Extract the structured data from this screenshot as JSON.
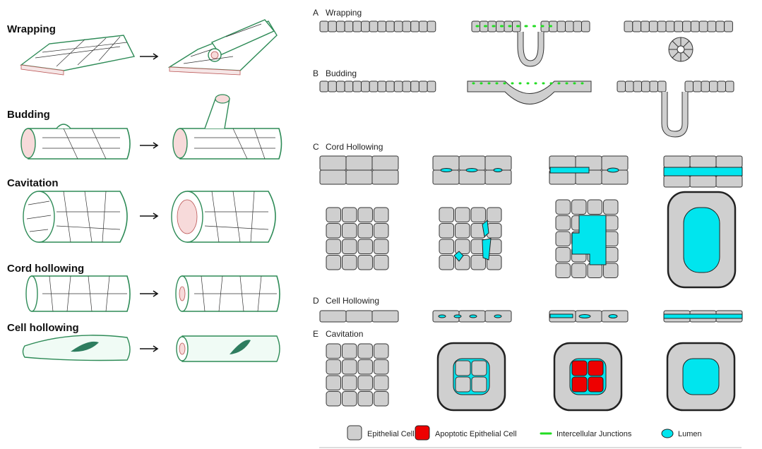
{
  "left_panel": {
    "labels": [
      "Wrapping",
      "Budding",
      "Cavitation",
      "Cord hollowing",
      "Cell hollowing"
    ]
  },
  "right_panel": {
    "sections": [
      {
        "letter": "A",
        "title": "Wrapping"
      },
      {
        "letter": "B",
        "title": "Budding"
      },
      {
        "letter": "C",
        "title": "Cord Hollowing"
      },
      {
        "letter": "D",
        "title": "Cell Hollowing"
      },
      {
        "letter": "E",
        "title": "Cavitation"
      }
    ]
  },
  "legend": [
    {
      "label": "Epithelial Cell",
      "color": "#cfcfcf"
    },
    {
      "label": "Apoptotic Epithelial Cell",
      "color": "#ee0000"
    },
    {
      "label": "Intercellular Junctions",
      "color": "#22dd22"
    },
    {
      "label": "Lumen",
      "color": "#00e5ee"
    }
  ],
  "colors": {
    "epithelial": "#cfcfcf",
    "apoptotic": "#ee0000",
    "junction": "#22dd22",
    "lumen": "#00e5ee",
    "tube_outline": "#2e8b57"
  }
}
